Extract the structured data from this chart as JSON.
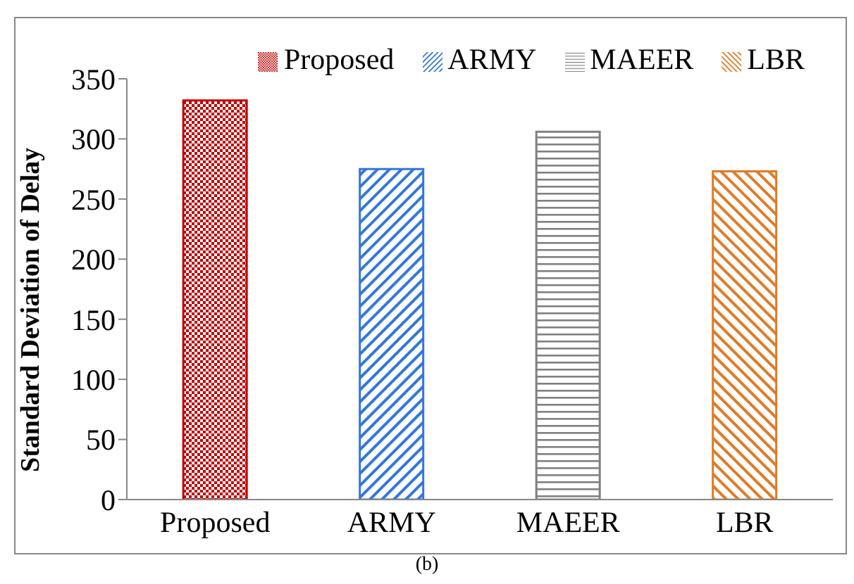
{
  "chart_data": {
    "type": "bar",
    "ylabel": "Standard Deviation of Delay",
    "categories": [
      "Proposed",
      "ARMY",
      "MAEER",
      "LBR"
    ],
    "series": [
      {
        "name": "Proposed",
        "color": "#c00000",
        "values": [
          332,
          null,
          null,
          null
        ]
      },
      {
        "name": "ARMY",
        "color": "#3377dd",
        "values": [
          null,
          275,
          null,
          null
        ]
      },
      {
        "name": "MAEER",
        "color": "#808080",
        "values": [
          null,
          null,
          306,
          null
        ]
      },
      {
        "name": "LBR",
        "color": "#e07b28",
        "values": [
          null,
          null,
          null,
          273
        ]
      }
    ],
    "ylim": [
      0,
      350
    ],
    "yticks": [
      0,
      50,
      100,
      150,
      200,
      250,
      300,
      350
    ],
    "legend": "top right",
    "annotations": [
      "(b)"
    ]
  }
}
